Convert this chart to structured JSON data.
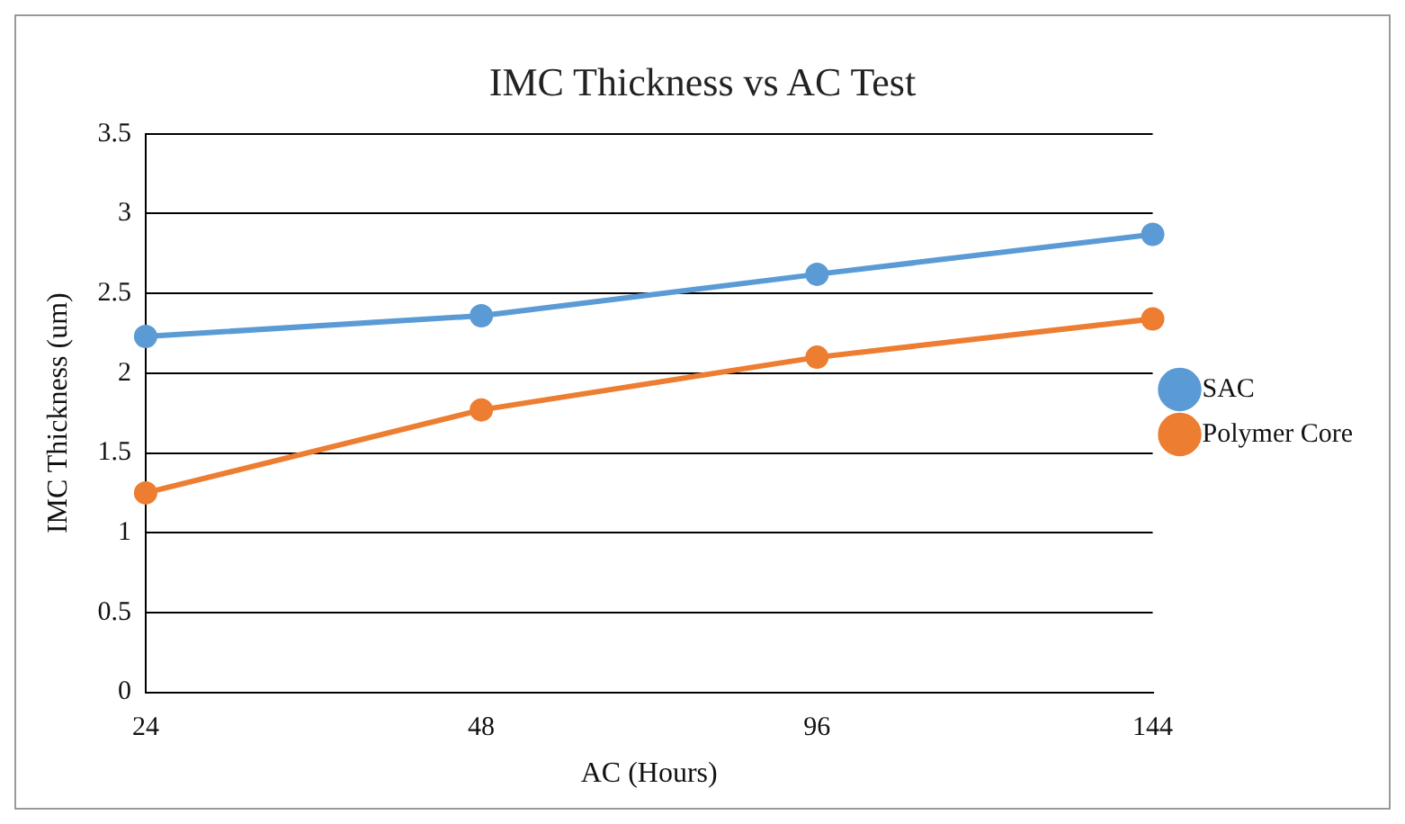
{
  "chart_data": {
    "type": "line",
    "title": "IMC Thickness vs AC Test",
    "xlabel": "AC (Hours)",
    "ylabel": "IMC Thickness (um)",
    "categories": [
      "24",
      "48",
      "96",
      "144"
    ],
    "series": [
      {
        "name": "SAC",
        "color": "#5b9bd5",
        "values": [
          2.23,
          2.36,
          2.62,
          2.87
        ]
      },
      {
        "name": "Polymer Core",
        "color": "#ed7d31",
        "values": [
          1.25,
          1.77,
          2.1,
          2.34
        ]
      }
    ],
    "ylim": [
      0,
      3.5
    ],
    "yticks": [
      0,
      0.5,
      1,
      1.5,
      2,
      2.5,
      3,
      3.5
    ],
    "grid": "y",
    "legend": "right",
    "marker": "circle",
    "line_style": "solid"
  }
}
